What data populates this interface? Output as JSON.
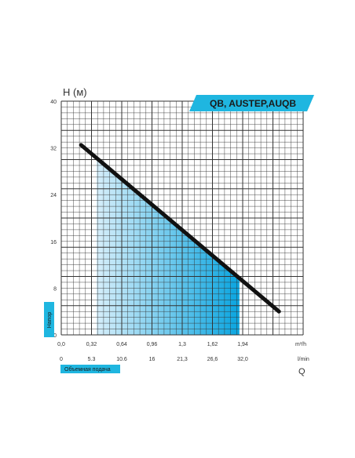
{
  "chart_data": {
    "type": "line",
    "title": "QB, AUSTEP,AUQB",
    "ylabel": "H (м)",
    "ylabel_side": "Напор",
    "ylim": [
      0,
      40
    ],
    "y_ticks": [
      "0",
      "8",
      "16",
      "24",
      "32",
      "40"
    ],
    "x_m3h_ticks": [
      "0,0",
      "0,32",
      "0,64",
      "0,96",
      "1,3",
      "1,62",
      "1,94"
    ],
    "x_m3h_unit": "m³/h",
    "x_lmin_ticks": [
      "0",
      "5.3",
      "10.6",
      "16",
      "21,3",
      "26,6",
      "32,0"
    ],
    "x_lmin_unit": "l/min",
    "xlabel": "Q",
    "xlabel_tag": "Объемная подача",
    "xlim": [
      0,
      2.2
    ],
    "grid": true,
    "series": [
      {
        "x": [
          0.18,
          1.98
        ],
        "y": [
          32.5,
          4
        ]
      }
    ],
    "working_range": {
      "q_from": 0.32,
      "q_to": 1.62
    },
    "colors": {
      "line": "#111111",
      "grid": "#333333",
      "fill_light": "#d6eefa",
      "fill_dark": "#0aa5e0",
      "accent": "#1fb6e0"
    }
  }
}
